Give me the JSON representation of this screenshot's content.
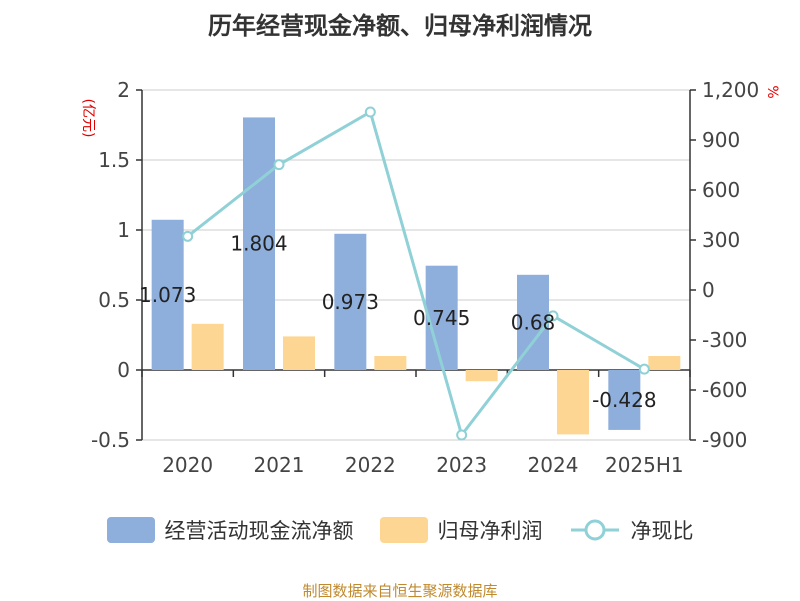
{
  "title": "历年经营现金净额、归母净利润情况",
  "colors": {
    "ocf": "#8eaedb",
    "profit": "#fdd693",
    "ratio": "#8fd1d6"
  },
  "chart_data": {
    "type": "bar",
    "title": "历年经营现金净额、归母净利润情况",
    "categories": [
      "2020",
      "2021",
      "2022",
      "2023",
      "2024",
      "2025H1"
    ],
    "left_axis": {
      "unit": "(亿元)",
      "ylim": [
        -0.5,
        2
      ],
      "ticks": [
        -0.5,
        0,
        0.5,
        1,
        1.5,
        2
      ],
      "tick_labels": [
        "-0.5",
        "0",
        "0.5",
        "1",
        "1.5",
        "2"
      ]
    },
    "right_axis": {
      "unit": "%",
      "ylim": [
        -900,
        1200
      ],
      "ticks": [
        -900,
        -600,
        -300,
        0,
        300,
        600,
        900,
        1200
      ],
      "tick_labels": [
        "-900",
        "-600",
        "-300",
        "0",
        "300",
        "600",
        "900",
        "1,200"
      ]
    },
    "series": [
      {
        "name": "经营活动现金流净额",
        "type": "bar",
        "axis": "left",
        "values": [
          1.073,
          1.804,
          0.973,
          0.745,
          0.68,
          -0.428
        ],
        "labels": [
          "1.073",
          "1.804",
          "0.973",
          "0.745",
          "0.68",
          "-0.428"
        ]
      },
      {
        "name": "归母净利润",
        "type": "bar",
        "axis": "left",
        "values": [
          0.33,
          0.24,
          0.1,
          -0.08,
          -0.46,
          0.1
        ]
      },
      {
        "name": "净现比",
        "type": "line",
        "axis": "right",
        "values": [
          322,
          752,
          1068,
          -870,
          -155,
          -475
        ]
      }
    ],
    "grid": true,
    "legend_position": "bottom"
  },
  "source": "制图数据来自恒生聚源数据库"
}
